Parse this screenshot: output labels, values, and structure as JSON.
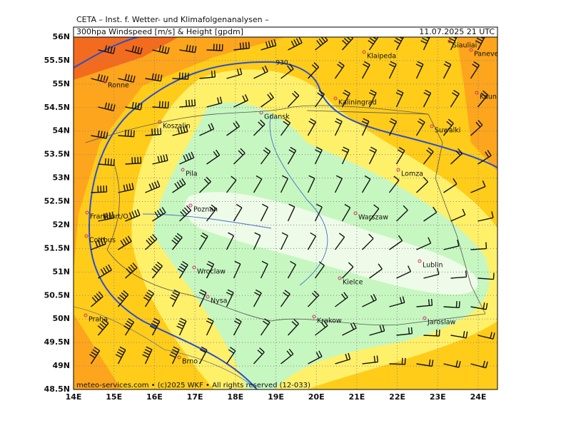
{
  "header": {
    "institute": "CETA – Inst. f. Wetter- und Klimafolgenanalysen –",
    "product": "300hpa Windspeed [m/s] & Height [gpdm]",
    "valid": "11.07.2025 21 UTC"
  },
  "footer": "meteo-services.com • (c)2025 WKF • All rights reserved (12-033)",
  "map": {
    "contour_label": "930",
    "lat_ticks": [
      {
        "value": 56,
        "label": "56N"
      },
      {
        "value": 55.5,
        "label": "55.5N"
      },
      {
        "value": 55,
        "label": "55N"
      },
      {
        "value": 54.5,
        "label": "54.5N"
      },
      {
        "value": 54,
        "label": "54N"
      },
      {
        "value": 53.5,
        "label": "53.5N"
      },
      {
        "value": 53,
        "label": "53N"
      },
      {
        "value": 52.5,
        "label": "52.5N"
      },
      {
        "value": 52,
        "label": "52N"
      },
      {
        "value": 51.5,
        "label": "51.5N"
      },
      {
        "value": 51,
        "label": "51N"
      },
      {
        "value": 50.5,
        "label": "50.5N"
      },
      {
        "value": 50,
        "label": "50N"
      },
      {
        "value": 49.5,
        "label": "49.5N"
      },
      {
        "value": 49,
        "label": "49N"
      },
      {
        "value": 48.5,
        "label": "48.5N"
      }
    ],
    "lon_ticks": [
      {
        "value": 14,
        "label": "14E"
      },
      {
        "value": 15,
        "label": "15E"
      },
      {
        "value": 16,
        "label": "16E"
      },
      {
        "value": 17,
        "label": "17E"
      },
      {
        "value": 18,
        "label": "18E"
      },
      {
        "value": 19,
        "label": "19E"
      },
      {
        "value": 20,
        "label": "20E"
      },
      {
        "value": 21,
        "label": "21E"
      },
      {
        "value": 22,
        "label": "22E"
      },
      {
        "value": 23,
        "label": "23E"
      },
      {
        "value": 24,
        "label": "24E"
      }
    ],
    "cities": [
      "Siauliai",
      "Panevezys",
      "Klaipeda",
      "Ronne",
      "Kaunas",
      "Kaliningrad",
      "Gdansk",
      "Koszalin",
      "Suwalki",
      "Lomza",
      "Pila",
      "Poznan",
      "Warszaw",
      "Frankfurt/O.",
      "Cottbus",
      "Lublin",
      "Wroclaw",
      "Kielce",
      "Nysa",
      "Praha",
      "Krakow",
      "Jaroslaw",
      "Brno"
    ]
  }
}
